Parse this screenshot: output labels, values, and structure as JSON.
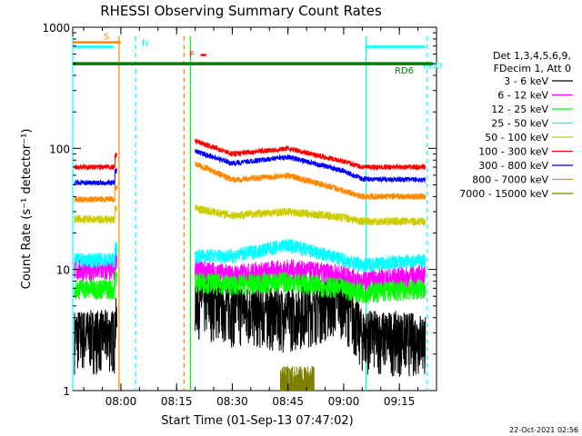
{
  "chart_data": {
    "type": "line",
    "title": "RHESSI Observing Summary Count Rates",
    "xlabel": "Start Time (01-Sep-13 07:47:02)",
    "ylabel": "Count Rate (s⁻¹ detector⁻¹)",
    "y_scale": "log",
    "xlim": [
      "07:47:02",
      "09:25:00"
    ],
    "ylim": [
      1,
      1000
    ],
    "x_tick_labels": [
      "08:00",
      "08:15",
      "08:30",
      "08:45",
      "09:00",
      "09:15"
    ],
    "y_tick_labels": [
      "1",
      "10",
      "100",
      "1000"
    ],
    "legend": {
      "header": [
        "Det 1,3,4,5,6,9,",
        "FDecim 1, Att 0"
      ],
      "placement": "right"
    },
    "data_gaps": [
      [
        "07:59:00",
        "08:19:00"
      ]
    ],
    "series": [
      {
        "name": "3 - 6 keV",
        "color": "#000000",
        "values_before_gap": 3,
        "values_after_gap": [
          6,
          5,
          4.5,
          6,
          3,
          2.8
        ],
        "x_after_gap": [
          "08:20",
          "08:30",
          "08:45",
          "09:00",
          "09:05",
          "09:22"
        ]
      },
      {
        "name": "6 - 12 keV",
        "color": "#ff00ff",
        "values_before_gap": 10,
        "values_after_gap": [
          10,
          9,
          10,
          9,
          8,
          9
        ],
        "x_after_gap": [
          "08:20",
          "08:30",
          "08:45",
          "09:00",
          "09:05",
          "09:22"
        ]
      },
      {
        "name": "12 - 25 keV",
        "color": "#00ff00",
        "values_before_gap": 7,
        "values_after_gap": [
          8,
          7.5,
          8,
          7,
          6.5,
          7
        ],
        "x_after_gap": [
          "08:20",
          "08:30",
          "08:45",
          "09:00",
          "09:05",
          "09:22"
        ]
      },
      {
        "name": "25 - 50 keV",
        "color": "#00ffff",
        "values_before_gap": 12,
        "values_after_gap": [
          13,
          13,
          16,
          12,
          11,
          12
        ],
        "x_after_gap": [
          "08:20",
          "08:30",
          "08:45",
          "09:00",
          "09:05",
          "09:22"
        ]
      },
      {
        "name": "50 - 100 keV",
        "color": "#cccc00",
        "values_before_gap": 26,
        "values_after_gap": [
          32,
          28,
          30,
          27,
          25,
          25
        ],
        "x_after_gap": [
          "08:20",
          "08:30",
          "08:45",
          "09:00",
          "09:05",
          "09:22"
        ]
      },
      {
        "name": "100 - 300 keV",
        "color": "#ff0000",
        "values_before_gap": 70,
        "values_after_gap": [
          115,
          90,
          100,
          78,
          70,
          70
        ],
        "x_after_gap": [
          "08:20",
          "08:30",
          "08:45",
          "09:00",
          "09:05",
          "09:22"
        ]
      },
      {
        "name": "300 - 800 keV",
        "color": "#0000ff",
        "values_before_gap": 52,
        "values_after_gap": [
          95,
          75,
          85,
          65,
          56,
          55
        ],
        "x_after_gap": [
          "08:20",
          "08:30",
          "08:45",
          "09:00",
          "09:05",
          "09:22"
        ]
      },
      {
        "name": "800 - 7000 keV",
        "color": "#ff8800",
        "values_before_gap": 38,
        "values_after_gap": [
          75,
          55,
          60,
          45,
          40,
          40
        ],
        "x_after_gap": [
          "08:20",
          "08:30",
          "08:45",
          "09:00",
          "09:05",
          "09:22"
        ]
      },
      {
        "name": "7000 - 15000 keV",
        "color": "#808000",
        "values_before_gap": null,
        "burst_range": [
          "08:43",
          "08:52"
        ],
        "burst_peak": 1.6
      }
    ],
    "flags": [
      {
        "name": "S",
        "color": "#ff8800",
        "x_range": [
          "07:47:02",
          "08:00:00"
        ],
        "level": 750
      },
      {
        "name": "N",
        "color": "#00ffff",
        "x_range": [
          "07:47:02",
          "07:58:00"
        ],
        "level": 690
      },
      {
        "name": "F",
        "color": "#ff0000",
        "x_range": [
          "08:21:30",
          "08:23:00"
        ],
        "level": 590
      },
      {
        "name": "RBD",
        "color": "#00ffff",
        "x_range": [
          "09:06:00",
          "09:22:00"
        ],
        "level": 690
      },
      {
        "name": "RD6",
        "color": "#008000",
        "x_range": [
          "07:47:02",
          "09:24:00"
        ],
        "level": 500
      }
    ],
    "vertical_markers": [
      {
        "time": "07:47:02",
        "color": "#00ffff",
        "style": "solid"
      },
      {
        "time": "07:59:30",
        "color": "#ff8800",
        "style": "solid"
      },
      {
        "time": "08:04:00",
        "color": "#00ffff",
        "style": "dashed"
      },
      {
        "time": "08:17:00",
        "color": "#ff8800",
        "style": "dashed"
      },
      {
        "time": "08:18:45",
        "color": "#00ff00",
        "style": "solid"
      },
      {
        "time": "09:06:00",
        "color": "#00ffff",
        "style": "solid"
      },
      {
        "time": "09:22:30",
        "color": "#00ffff",
        "style": "dashed"
      }
    ]
  },
  "footer": {
    "timestamp": "22-Oct-2021 02:56"
  }
}
